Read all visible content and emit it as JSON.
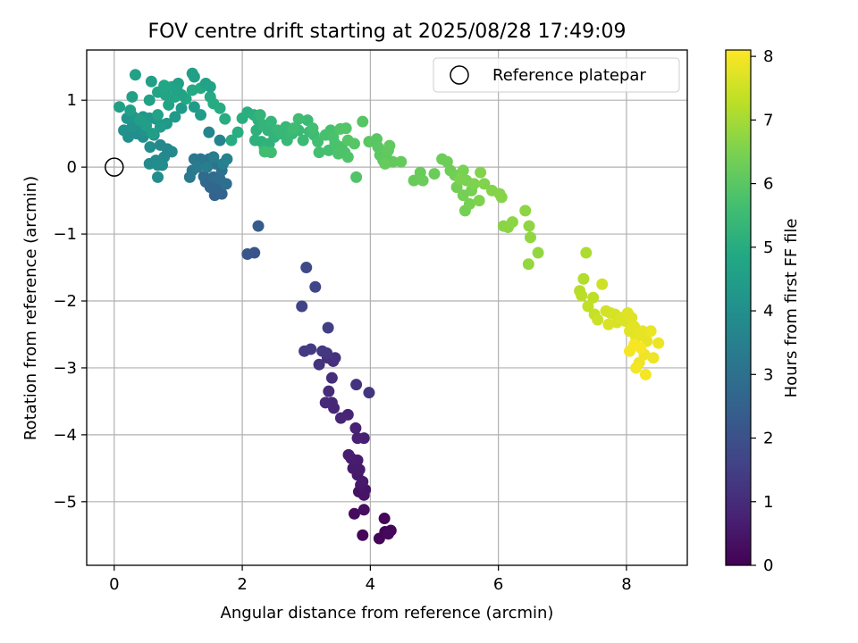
{
  "chart_data": {
    "type": "scatter",
    "title": "FOV centre drift starting at 2025/08/28 17:49:09",
    "xlabel": "Angular distance from reference (arcmin)",
    "ylabel": "Rotation from reference (arcmin)",
    "xlim": [
      -0.43,
      8.95
    ],
    "ylim": [
      -5.95,
      1.75
    ],
    "xticks": [
      0,
      2,
      4,
      6,
      8
    ],
    "yticks": [
      -5,
      -4,
      -3,
      -2,
      -1,
      0,
      1
    ],
    "grid": true,
    "legend": {
      "placement": "top-right",
      "entries": [
        "Reference platepar"
      ]
    },
    "reference_point": {
      "x": 0,
      "y": 0
    },
    "colorbar": {
      "label": "Hours from first FF file",
      "colormap": "viridis",
      "range": [
        0,
        8.1
      ],
      "ticks": [
        0,
        1,
        2,
        3,
        4,
        5,
        6,
        7,
        8
      ]
    },
    "points": [
      [
        4.23,
        -5.45,
        0.05
      ],
      [
        4.32,
        -5.43,
        0.08
      ],
      [
        4.14,
        -5.55,
        0.1
      ],
      [
        4.22,
        -5.25,
        0.12
      ],
      [
        3.88,
        -5.5,
        0.15
      ],
      [
        4.28,
        -5.48,
        0.18
      ],
      [
        3.75,
        -5.18,
        0.25
      ],
      [
        3.9,
        -5.12,
        0.3
      ],
      [
        3.82,
        -4.85,
        0.4
      ],
      [
        3.9,
        -4.9,
        0.42
      ],
      [
        3.92,
        -4.82,
        0.45
      ],
      [
        3.85,
        -4.75,
        0.48
      ],
      [
        3.8,
        -4.6,
        0.52
      ],
      [
        3.88,
        -4.7,
        0.55
      ],
      [
        3.73,
        -4.5,
        0.58
      ],
      [
        3.83,
        -4.52,
        0.6
      ],
      [
        3.8,
        -4.38,
        0.63
      ],
      [
        3.7,
        -4.35,
        0.65
      ],
      [
        3.66,
        -4.3,
        0.68
      ],
      [
        3.9,
        -4.05,
        0.72
      ],
      [
        3.8,
        -4.05,
        0.75
      ],
      [
        3.77,
        -3.9,
        0.78
      ],
      [
        3.65,
        -3.7,
        0.82
      ],
      [
        3.54,
        -3.75,
        0.85
      ],
      [
        3.43,
        -3.6,
        0.88
      ],
      [
        3.4,
        -3.52,
        0.92
      ],
      [
        3.3,
        -3.52,
        0.95
      ],
      [
        3.35,
        -3.35,
        1.0
      ],
      [
        3.4,
        -3.15,
        1.05
      ],
      [
        3.42,
        -2.9,
        1.08
      ],
      [
        3.33,
        -2.85,
        1.12
      ],
      [
        3.45,
        -2.85,
        1.15
      ],
      [
        3.2,
        -2.95,
        1.2
      ],
      [
        3.78,
        -3.25,
        1.22
      ],
      [
        3.98,
        -3.37,
        1.25
      ],
      [
        3.32,
        -2.78,
        1.3
      ],
      [
        3.25,
        -2.75,
        1.35
      ],
      [
        3.07,
        -2.72,
        1.4
      ],
      [
        2.97,
        -2.75,
        1.45
      ],
      [
        3.34,
        -2.4,
        1.5
      ],
      [
        2.93,
        -2.08,
        1.6
      ],
      [
        3.14,
        -1.79,
        1.7
      ],
      [
        3.0,
        -1.5,
        1.8
      ],
      [
        2.19,
        -1.28,
        2.1
      ],
      [
        2.08,
        -1.3,
        2.15
      ],
      [
        2.25,
        -0.88,
        2.3
      ],
      [
        1.57,
        -0.42,
        2.55
      ],
      [
        1.68,
        -0.4,
        2.6
      ],
      [
        1.6,
        -0.3,
        2.65
      ],
      [
        1.5,
        -0.3,
        2.7
      ],
      [
        1.43,
        -0.22,
        2.75
      ],
      [
        1.4,
        -0.14,
        2.8
      ],
      [
        1.55,
        -0.15,
        2.85
      ],
      [
        1.65,
        -0.18,
        2.9
      ],
      [
        1.75,
        -0.25,
        2.95
      ],
      [
        1.68,
        -0.05,
        3.0
      ],
      [
        1.58,
        0.05,
        3.05
      ],
      [
        1.48,
        0.12,
        3.1
      ],
      [
        1.35,
        0.12,
        3.15
      ],
      [
        1.25,
        0.12,
        3.2
      ],
      [
        1.22,
        -0.05,
        3.25
      ],
      [
        1.18,
        -0.15,
        3.3
      ],
      [
        1.3,
        0.0,
        3.35
      ],
      [
        1.45,
        0.0,
        3.4
      ],
      [
        1.55,
        0.15,
        3.45
      ],
      [
        1.7,
        0.05,
        3.5
      ],
      [
        1.76,
        0.12,
        3.55
      ],
      [
        1.65,
        0.4,
        3.6
      ],
      [
        1.48,
        0.52,
        3.65
      ],
      [
        0.83,
        0.27,
        3.72
      ],
      [
        0.72,
        0.33,
        3.75
      ],
      [
        0.9,
        0.23,
        3.78
      ],
      [
        0.78,
        0.15,
        3.8
      ],
      [
        0.65,
        0.1,
        3.82
      ],
      [
        0.55,
        0.05,
        3.85
      ],
      [
        0.68,
        0.03,
        3.88
      ],
      [
        0.75,
        0.03,
        3.9
      ],
      [
        0.68,
        -0.15,
        3.92
      ],
      [
        0.56,
        0.3,
        3.95
      ],
      [
        0.45,
        0.45,
        3.98
      ],
      [
        0.35,
        0.5,
        4.0
      ],
      [
        0.22,
        0.45,
        4.02
      ],
      [
        0.15,
        0.55,
        4.05
      ],
      [
        0.28,
        0.6,
        4.08
      ],
      [
        0.38,
        0.65,
        4.1
      ],
      [
        0.48,
        0.55,
        4.12
      ],
      [
        0.62,
        0.48,
        4.15
      ],
      [
        0.75,
        0.63,
        4.18
      ],
      [
        0.2,
        0.73,
        4.2
      ],
      [
        0.3,
        0.75,
        4.22
      ],
      [
        0.45,
        0.75,
        4.25
      ],
      [
        0.55,
        0.73,
        4.28
      ],
      [
        0.65,
        0.72,
        4.3
      ],
      [
        0.82,
        0.65,
        4.32
      ],
      [
        0.95,
        0.75,
        4.35
      ],
      [
        1.05,
        0.88,
        4.38
      ],
      [
        1.25,
        0.9,
        4.4
      ],
      [
        1.35,
        0.78,
        4.42
      ],
      [
        0.72,
        0.6,
        4.45
      ],
      [
        0.6,
        0.5,
        4.48
      ],
      [
        0.5,
        0.62,
        4.5
      ],
      [
        0.4,
        0.7,
        4.52
      ],
      [
        0.08,
        0.9,
        4.55
      ],
      [
        0.25,
        0.85,
        4.58
      ],
      [
        0.28,
        1.05,
        4.6
      ],
      [
        0.55,
        1.0,
        4.62
      ],
      [
        0.68,
        0.78,
        4.65
      ],
      [
        0.85,
        0.93,
        4.68
      ],
      [
        0.95,
        1.05,
        4.7
      ],
      [
        0.8,
        1.08,
        4.72
      ],
      [
        0.68,
        1.12,
        4.75
      ],
      [
        0.78,
        1.22,
        4.78
      ],
      [
        0.9,
        1.2,
        4.8
      ],
      [
        1.0,
        1.1,
        4.82
      ],
      [
        1.12,
        1.02,
        4.85
      ],
      [
        1.22,
        1.15,
        4.88
      ],
      [
        1.35,
        1.18,
        4.9
      ],
      [
        1.5,
        1.05,
        4.92
      ],
      [
        1.55,
        0.95,
        4.95
      ],
      [
        1.65,
        0.88,
        4.98
      ],
      [
        1.73,
        0.72,
        5.0
      ],
      [
        1.83,
        0.4,
        5.02
      ],
      [
        1.93,
        0.52,
        5.04
      ],
      [
        2.0,
        0.73,
        5.06
      ],
      [
        2.08,
        0.82,
        5.08
      ],
      [
        2.18,
        0.78,
        5.1
      ],
      [
        2.25,
        0.7,
        5.12
      ],
      [
        2.22,
        0.55,
        5.14
      ],
      [
        2.2,
        0.4,
        5.16
      ],
      [
        2.3,
        0.38,
        5.18
      ],
      [
        2.35,
        0.28,
        5.2
      ],
      [
        2.42,
        0.35,
        5.22
      ],
      [
        2.5,
        0.45,
        5.24
      ],
      [
        2.4,
        0.55,
        5.26
      ],
      [
        2.33,
        0.63,
        5.28
      ],
      [
        2.28,
        0.78,
        5.3
      ],
      [
        2.45,
        0.68,
        5.32
      ],
      [
        2.55,
        0.55,
        5.34
      ],
      [
        2.6,
        0.5,
        5.36
      ],
      [
        2.68,
        0.6,
        5.38
      ],
      [
        2.7,
        0.4,
        5.4
      ],
      [
        2.78,
        0.5,
        5.42
      ],
      [
        2.88,
        0.55,
        5.44
      ],
      [
        2.95,
        0.4,
        5.46
      ],
      [
        3.02,
        0.7,
        5.48
      ],
      [
        3.05,
        0.53,
        5.5
      ],
      [
        3.12,
        0.48,
        5.52
      ],
      [
        2.88,
        0.72,
        5.54
      ],
      [
        2.8,
        0.58,
        5.56
      ],
      [
        2.45,
        0.22,
        5.58
      ],
      [
        2.35,
        0.23,
        5.6
      ],
      [
        1.22,
        1.4,
        4.52
      ],
      [
        1.25,
        1.35,
        4.54
      ],
      [
        1.0,
        1.25,
        4.56
      ],
      [
        0.58,
        1.28,
        4.58
      ],
      [
        0.33,
        1.38,
        4.6
      ],
      [
        1.43,
        1.25,
        4.62
      ],
      [
        1.5,
        1.2,
        4.64
      ],
      [
        0.98,
        1.15,
        4.66
      ],
      [
        1.05,
        1.08,
        4.68
      ],
      [
        3.1,
        0.58,
        5.62
      ],
      [
        3.18,
        0.38,
        5.64
      ],
      [
        3.2,
        0.22,
        5.66
      ],
      [
        3.35,
        0.25,
        5.68
      ],
      [
        3.3,
        0.48,
        5.7
      ],
      [
        3.38,
        0.55,
        5.72
      ],
      [
        3.42,
        0.45,
        5.74
      ],
      [
        3.45,
        0.35,
        5.76
      ],
      [
        3.55,
        0.3,
        5.78
      ],
      [
        3.5,
        0.2,
        5.8
      ],
      [
        3.6,
        0.22,
        5.82
      ],
      [
        3.65,
        0.15,
        5.84
      ],
      [
        3.78,
        -0.15,
        5.86
      ],
      [
        3.53,
        0.57,
        5.88
      ],
      [
        3.62,
        0.58,
        5.9
      ],
      [
        3.65,
        0.4,
        5.92
      ],
      [
        3.75,
        0.35,
        5.94
      ],
      [
        3.88,
        0.68,
        5.96
      ],
      [
        3.98,
        0.38,
        5.98
      ],
      [
        4.1,
        0.42,
        6.0
      ],
      [
        4.12,
        0.3,
        6.02
      ],
      [
        4.15,
        0.18,
        6.04
      ],
      [
        4.2,
        0.1,
        6.06
      ],
      [
        4.25,
        0.2,
        6.08
      ],
      [
        4.28,
        0.25,
        6.1
      ],
      [
        4.3,
        0.32,
        6.12
      ],
      [
        4.35,
        0.08,
        6.14
      ],
      [
        4.48,
        0.08,
        6.16
      ],
      [
        4.23,
        0.05,
        6.18
      ],
      [
        4.68,
        -0.2,
        6.2
      ],
      [
        4.78,
        -0.08,
        6.22
      ],
      [
        4.82,
        -0.2,
        6.24
      ],
      [
        5.0,
        -0.1,
        6.26
      ],
      [
        5.12,
        0.12,
        6.28
      ],
      [
        5.2,
        0.08,
        6.3
      ],
      [
        5.25,
        -0.05,
        6.32
      ],
      [
        5.32,
        -0.12,
        6.34
      ],
      [
        5.35,
        -0.3,
        6.36
      ],
      [
        5.45,
        -0.42,
        6.38
      ],
      [
        5.48,
        -0.65,
        6.4
      ],
      [
        5.55,
        -0.55,
        6.42
      ],
      [
        5.58,
        -0.35,
        6.44
      ],
      [
        5.45,
        -0.05,
        6.46
      ],
      [
        5.5,
        -0.2,
        6.48
      ],
      [
        5.4,
        -0.18,
        6.5
      ],
      [
        5.62,
        -0.25,
        6.52
      ],
      [
        5.7,
        -0.5,
        6.54
      ],
      [
        5.78,
        -0.25,
        6.56
      ],
      [
        5.72,
        -0.08,
        6.58
      ],
      [
        5.9,
        -0.35,
        6.6
      ],
      [
        6.02,
        -0.4,
        6.62
      ],
      [
        6.05,
        -0.45,
        6.64
      ],
      [
        6.08,
        -0.88,
        6.66
      ],
      [
        6.15,
        -0.9,
        6.68
      ],
      [
        6.22,
        -0.82,
        6.7
      ],
      [
        6.42,
        -0.65,
        6.72
      ],
      [
        6.48,
        -0.88,
        6.74
      ],
      [
        6.5,
        -1.05,
        6.76
      ],
      [
        6.62,
        -1.28,
        6.78
      ],
      [
        6.47,
        -1.45,
        6.8
      ],
      [
        7.37,
        -1.28,
        7.1
      ],
      [
        7.33,
        -1.67,
        7.15
      ],
      [
        7.27,
        -1.85,
        7.2
      ],
      [
        7.3,
        -1.92,
        7.25
      ],
      [
        7.48,
        -1.95,
        7.3
      ],
      [
        7.4,
        -2.08,
        7.35
      ],
      [
        7.5,
        -2.2,
        7.4
      ],
      [
        7.55,
        -2.28,
        7.45
      ],
      [
        7.62,
        -1.75,
        7.5
      ],
      [
        7.68,
        -2.15,
        7.55
      ],
      [
        7.75,
        -2.18,
        7.58
      ],
      [
        7.82,
        -2.2,
        7.6
      ],
      [
        7.85,
        -2.32,
        7.62
      ],
      [
        7.72,
        -2.35,
        7.64
      ],
      [
        7.92,
        -2.25,
        7.66
      ],
      [
        7.98,
        -2.3,
        7.68
      ],
      [
        8.02,
        -2.18,
        7.7
      ],
      [
        8.08,
        -2.25,
        7.72
      ],
      [
        8.05,
        -2.45,
        7.74
      ],
      [
        8.12,
        -2.38,
        7.76
      ],
      [
        8.15,
        -2.55,
        7.78
      ],
      [
        8.2,
        -2.48,
        7.8
      ],
      [
        8.25,
        -2.45,
        7.82
      ],
      [
        8.32,
        -2.6,
        7.84
      ],
      [
        8.38,
        -2.45,
        7.86
      ],
      [
        8.5,
        -2.63,
        7.88
      ],
      [
        8.42,
        -2.85,
        7.9
      ],
      [
        8.28,
        -2.8,
        7.92
      ],
      [
        8.2,
        -2.92,
        7.94
      ],
      [
        8.15,
        -3.0,
        7.96
      ],
      [
        8.3,
        -3.1,
        7.98
      ],
      [
        8.05,
        -2.75,
        8.0
      ],
      [
        8.12,
        -2.65,
        8.02
      ],
      [
        8.22,
        -2.7,
        8.04
      ]
    ]
  }
}
